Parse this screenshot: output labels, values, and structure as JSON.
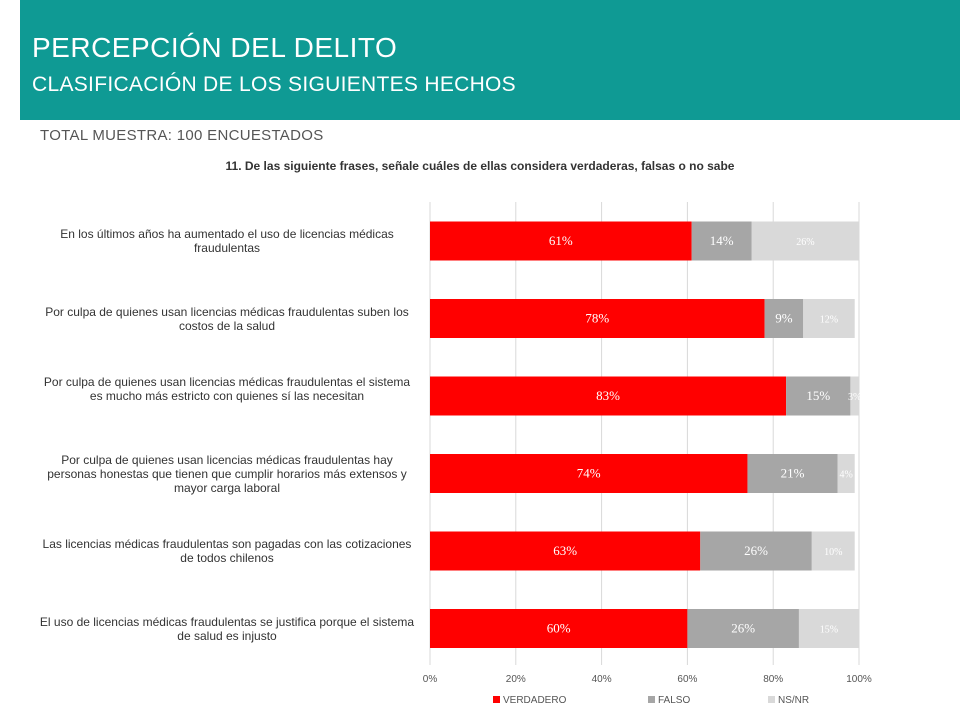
{
  "header": {
    "title": "PERCEPCIÓN DEL DELITO",
    "subtitle": "CLASIFICACIÓN DE LOS SIGUIENTES HECHOS",
    "sample": "TOTAL MUESTRA: 100 ENCUESTADOS"
  },
  "colors": {
    "header_band": "#0f9a94",
    "verdadero": "#ff0000",
    "falso": "#a6a6a6",
    "nsnr": "#d9d9d9"
  },
  "chart_data": {
    "type": "bar",
    "orientation": "horizontal",
    "stacked": true,
    "title": "11. De las siguiente frases, señale cuáles de ellas considera verdaderas, falsas o no sabe",
    "categories": [
      "En los últimos años ha aumentado el uso de licencias médicas fraudulentas",
      "Por culpa de quienes usan licencias médicas fraudulentas suben los costos de la salud",
      "Por culpa de quienes usan licencias médicas fraudulentas el sistema es mucho más estricto con quienes sí las necesitan",
      "Por culpa de quienes usan licencias médicas fraudulentas hay personas honestas que tienen que cumplir horarios más extensos y mayor carga laboral",
      "Las licencias médicas fraudulentas son pagadas con las cotizaciones de todos chilenos",
      "El uso de licencias médicas fraudulentas se justifica porque el sistema de salud es injusto"
    ],
    "series": [
      {
        "name": "VERDADERO",
        "values": [
          61,
          78,
          83,
          74,
          63,
          60
        ],
        "labels": [
          "61%",
          "78%",
          "83%",
          "74%",
          "63%",
          "60%"
        ]
      },
      {
        "name": "FALSO",
        "values": [
          14,
          9,
          15,
          21,
          26,
          26
        ],
        "labels": [
          "14%",
          "9%",
          "15%",
          "21%",
          "26%",
          "26%"
        ]
      },
      {
        "name": "NS/NR",
        "values": [
          26,
          12,
          3,
          4,
          10,
          15
        ],
        "labels": [
          "26%",
          "12%",
          "3%",
          "4%",
          "10%",
          "15%"
        ]
      }
    ],
    "xlim": [
      0,
      100
    ],
    "x_ticks": [
      "0%",
      "20%",
      "40%",
      "60%",
      "80%",
      "100%"
    ],
    "grid": true,
    "legend_position": "bottom"
  }
}
